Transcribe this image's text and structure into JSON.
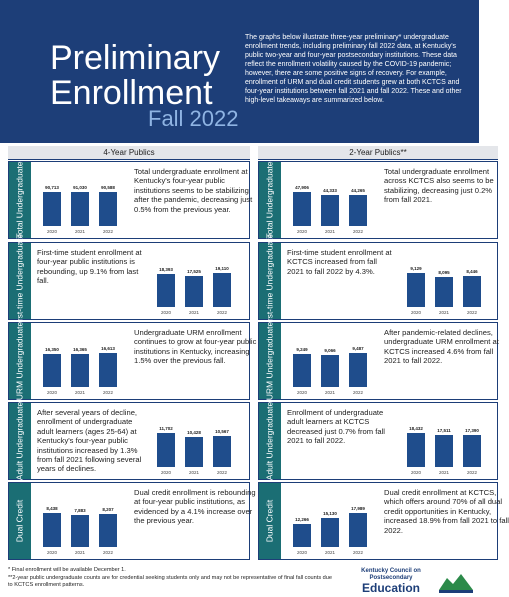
{
  "header": {
    "title_line1": "Preliminary",
    "title_line2": "Enrollment",
    "subtitle": "Fall 2022",
    "intro": "The graphs below illustrate three-year preliminary* undergraduate enrollment trends, including preliminary fall 2022 data, at Kentucky's public two-year and four-year postsecondary institutions. These data reflect the enrollment volatility caused by the COVID-19 pandemic; however, there are some positive signs of recovery. For example, enrollment of URM and dual credit students grew at both KCTCS and four-year institutions between fall 2021 and fall 2022. These and other high-level takeaways are summarized below."
  },
  "columns": [
    {
      "heading": "4-Year Publics",
      "rows": [
        {
          "label": "Total Undergraduate",
          "text": "Total undergraduate enrollment at Kentucky's four-year public institutions seems to be stabilizing after the pandemic, decreasing just 0.5% from the previous year.",
          "categories": [
            "2020",
            "2021",
            "2022"
          ],
          "values": [
            90713,
            91030,
            90588
          ],
          "value_labels": [
            "90,713",
            "91,030",
            "90,588"
          ]
        },
        {
          "label": "First-time Undergraduate",
          "text": "First-time student enrollment at four-year public institutions is rebounding, up 9.1% from last fall.",
          "categories": [
            "2020",
            "2021",
            "2022"
          ],
          "values": [
            18393,
            17525,
            19110
          ],
          "value_labels": [
            "18,393",
            "17,525",
            "19,110"
          ]
        },
        {
          "label": "URM Undergraduate",
          "text": "Undergraduate URM enrollment continues to grow at four-year public institutions in Kentucky, increasing 1.5% over the previous fall.",
          "categories": [
            "2020",
            "2021",
            "2022"
          ],
          "values": [
            16350,
            16365,
            16613
          ],
          "value_labels": [
            "16,350",
            "16,365",
            "16,613"
          ]
        },
        {
          "label": "Adult Undergraduate",
          "text": "After several years of decline, enrollment of undergraduate adult learners (ages 25-64) at Kentucky's four-year public institutions increased by 1.3% from fall 2021 following several years of declines.",
          "categories": [
            "2020",
            "2021",
            "2022"
          ],
          "values": [
            11702,
            10428,
            10567
          ],
          "value_labels": [
            "11,702",
            "10,428",
            "10,567"
          ]
        },
        {
          "label": "Dual Credit",
          "text": "Dual credit enrollment is rebounding at four-year public institutions, as evidenced by a 4.1% increase over the previous year.",
          "categories": [
            "2020",
            "2021",
            "2022"
          ],
          "values": [
            8438,
            7883,
            8207
          ],
          "value_labels": [
            "8,438",
            "7,883",
            "8,207"
          ]
        }
      ]
    },
    {
      "heading": "2-Year Publics**",
      "rows": [
        {
          "label": "Total Undergraduate",
          "text": "Total undergraduate enrollment across KCTCS also seems to be stabilizing, decreasing just 0.2% from fall 2021.",
          "categories": [
            "2020",
            "2021",
            "2022"
          ],
          "values": [
            47906,
            44333,
            44265
          ],
          "value_labels": [
            "47,906",
            "44,333",
            "44,265"
          ]
        },
        {
          "label": "First-time Undergraduate",
          "text": "First-time student enrollment at KCTCS increased from fall 2021 to fall 2022 by 4.3%.",
          "categories": [
            "2020",
            "2021",
            "2022"
          ],
          "values": [
            9129,
            8095,
            8446
          ],
          "value_labels": [
            "9,129",
            "8,095",
            "8,446"
          ]
        },
        {
          "label": "URM Undergraduate",
          "text": "After pandemic-related declines, undergraduate URM enrollment at KCTCS increased 4.6% from fall 2021 to fall 2022.",
          "categories": [
            "2020",
            "2021",
            "2022"
          ],
          "values": [
            9249,
            9066,
            9487
          ],
          "value_labels": [
            "9,249",
            "9,066",
            "9,487"
          ]
        },
        {
          "label": "Adult Undergraduate",
          "text": "Enrollment of undergraduate adult learners at KCTCS decreased just 0.7% from fall 2021 to fall 2022.",
          "categories": [
            "2020",
            "2021",
            "2022"
          ],
          "values": [
            18432,
            17511,
            17390
          ],
          "value_labels": [
            "18,432",
            "17,511",
            "17,390"
          ]
        },
        {
          "label": "Dual Credit",
          "text": "Dual credit enrollment at KCTCS, which offers around 70% of all dual credit opportunities in Kentucky, increased 18.9% from fall 2021 to fall 2022.",
          "categories": [
            "2020",
            "2021",
            "2022"
          ],
          "values": [
            12266,
            15130,
            17989
          ],
          "value_labels": [
            "12,266",
            "15,130",
            "17,989"
          ]
        }
      ]
    }
  ],
  "footnotes": [
    "* Final enrollment will be available December 1.",
    "**2-year public undergraduate counts are for credential seeking students only and may not be representative of final fall counts due to KCTCS enrollment patterns."
  ],
  "logo": {
    "line1": "Kentucky Council on Postsecondary",
    "line2": "Education"
  }
}
